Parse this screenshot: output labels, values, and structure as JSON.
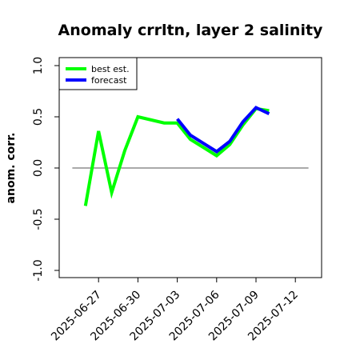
{
  "chart_data": {
    "type": "line",
    "title": "Anomaly crrltn, layer 2 salinity",
    "ylabel": "anom. corr.",
    "xlabel": "",
    "ylim": [
      -1.0,
      1.0
    ],
    "y_ticks": [
      "-1.0",
      "-0.5",
      "0.0",
      "0.5",
      "1.0"
    ],
    "y_tick_values": [
      -1.0,
      -0.5,
      0.0,
      0.5,
      1.0
    ],
    "x_ticks": [
      {
        "label": "2025-06-27",
        "date": "2025-06-27",
        "color": "#000000"
      },
      {
        "label": "2025-06-30",
        "date": "2025-06-30",
        "color": "#000000"
      },
      {
        "label": "2025-07-03",
        "date": "2025-07-03",
        "color": "#228b22"
      },
      {
        "label": "2025-07-06",
        "date": "2025-07-06",
        "color": "#000000"
      },
      {
        "label": "2025-07-09",
        "date": "2025-07-09",
        "color": "#000000"
      },
      {
        "label": "2025-07-12",
        "date": "2025-07-12",
        "color": "#000000"
      }
    ],
    "x_range": [
      "2025-06-24",
      "2025-07-14"
    ],
    "reference_line": 0.0,
    "legend_position": "top-left",
    "series": [
      {
        "name": "best est.",
        "color": "#00ff00",
        "x": [
          "2025-06-26",
          "2025-06-27",
          "2025-06-28",
          "2025-06-29",
          "2025-06-30",
          "2025-07-02",
          "2025-07-03",
          "2025-07-04",
          "2025-07-06",
          "2025-07-07",
          "2025-07-08",
          "2025-07-09",
          "2025-07-10"
        ],
        "values": [
          -0.37,
          0.36,
          -0.24,
          0.17,
          0.5,
          0.44,
          0.44,
          0.28,
          0.12,
          0.23,
          0.42,
          0.58,
          0.56
        ]
      },
      {
        "name": "forecast",
        "color": "#0000ff",
        "x": [
          "2025-07-03",
          "2025-07-04",
          "2025-07-06",
          "2025-07-07",
          "2025-07-08",
          "2025-07-09",
          "2025-07-10"
        ],
        "values": [
          0.48,
          0.32,
          0.16,
          0.26,
          0.45,
          0.59,
          0.53
        ]
      }
    ]
  }
}
